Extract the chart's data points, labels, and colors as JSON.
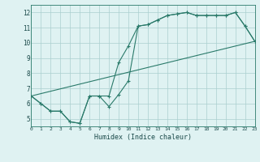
{
  "curve1_x": [
    0,
    1,
    2,
    3,
    4,
    5,
    6,
    7,
    8,
    9,
    10,
    11,
    12,
    13,
    14,
    15,
    16,
    17,
    18,
    19,
    20,
    21,
    22,
    23
  ],
  "curve1_y": [
    6.5,
    6.0,
    5.5,
    5.5,
    4.8,
    4.7,
    6.5,
    6.5,
    5.8,
    6.6,
    7.5,
    11.1,
    11.2,
    11.5,
    11.8,
    11.9,
    12.0,
    11.8,
    11.8,
    11.8,
    11.8,
    12.0,
    11.1,
    10.1
  ],
  "curve2_x": [
    0,
    1,
    2,
    3,
    4,
    5,
    6,
    7,
    8,
    9,
    10,
    11,
    12,
    13,
    14,
    15,
    16,
    17,
    18,
    19,
    20,
    21,
    22,
    23
  ],
  "curve2_y": [
    6.5,
    6.0,
    5.5,
    5.5,
    4.8,
    4.7,
    6.5,
    6.5,
    6.5,
    8.7,
    9.8,
    11.1,
    11.2,
    11.5,
    11.8,
    11.9,
    12.0,
    11.8,
    11.8,
    11.8,
    11.8,
    12.0,
    11.1,
    10.1
  ],
  "curve3_x": [
    0,
    23
  ],
  "curve3_y": [
    6.5,
    10.1
  ],
  "line_color": "#2a7a6a",
  "bg_color": "#dff2f2",
  "grid_color": "#aacfcf",
  "xlabel": "Humidex (Indice chaleur)",
  "xlim": [
    0,
    23
  ],
  "ylim": [
    4.5,
    12.5
  ],
  "yticks": [
    5,
    6,
    7,
    8,
    9,
    10,
    11,
    12
  ],
  "xticks": [
    0,
    1,
    2,
    3,
    4,
    5,
    6,
    7,
    8,
    9,
    10,
    11,
    12,
    13,
    14,
    15,
    16,
    17,
    18,
    19,
    20,
    21,
    22,
    23
  ]
}
